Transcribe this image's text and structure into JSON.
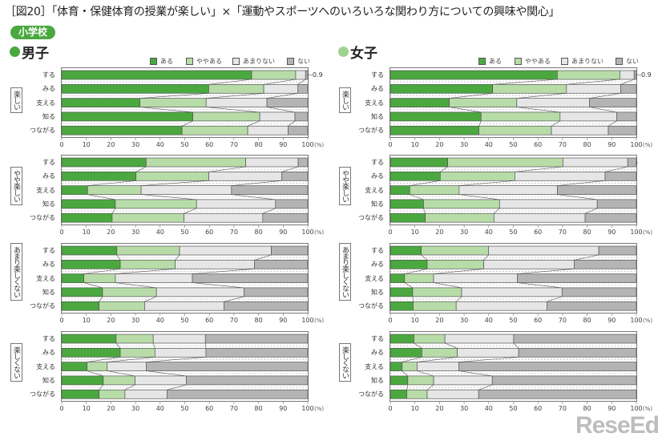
{
  "title": "［図20］「体育・保健体育の授業が楽しい」×「運動やスポーツへのいろいろな関わり方についての興味や関心」",
  "badge": "小学校",
  "logo": "ReseEd",
  "chart_data": {
    "type": "bar",
    "orientation": "horizontal",
    "stacked": "percent",
    "legend": [
      "ある",
      "ややある",
      "あまりない",
      "ない"
    ],
    "legend_placement": "top-right",
    "colors": [
      "#4aa83f",
      "#b7dca8",
      "#e6e6e6",
      "#b4b4b4"
    ],
    "categories": [
      "する",
      "みる",
      "支える",
      "知る",
      "つながる"
    ],
    "xlim": [
      0,
      100
    ],
    "xticks": [
      0,
      10,
      20,
      30,
      40,
      50,
      60,
      70,
      80,
      90,
      100
    ],
    "xunit": "(%)",
    "panels": [
      {
        "gender": "男子",
        "dot_color": "#4aa83f",
        "groups": [
          {
            "label": "楽しい",
            "values": [
              [
                77.2,
                17.9,
                4.0,
                0.9
              ],
              [
                59.8,
                22.4,
                13.9,
                4.0
              ],
              [
                31.8,
                26.9,
                24.7,
                16.6
              ],
              [
                53.3,
                27.2,
                14.3,
                5.2
              ],
              [
                48.9,
                26.7,
                16.4,
                8.0
              ]
            ]
          },
          {
            "label": "やや楽しい",
            "values": [
              [
                34.3,
                40.5,
                21.3,
                3.9
              ],
              [
                30.2,
                29.6,
                29.6,
                10.6
              ],
              [
                10.5,
                21.8,
                36.7,
                31.0
              ],
              [
                21.8,
                33.0,
                32.1,
                13.1
              ],
              [
                20.5,
                29.2,
                32.0,
                18.3
              ]
            ]
          },
          {
            "label": "あまり楽しくない",
            "values": [
              [
                22.4,
                25.5,
                37.3,
                14.8
              ],
              [
                23.8,
                22.3,
                32.3,
                21.6
              ],
              [
                9.0,
                12.8,
                31.3,
                46.9
              ],
              [
                16.6,
                21.9,
                35.6,
                25.9
              ],
              [
                15.2,
                18.5,
                32.3,
                34.0
              ]
            ]
          },
          {
            "label": "楽しくない",
            "values": [
              [
                22.1,
                15.1,
                21.2,
                41.6
              ],
              [
                23.8,
                14.1,
                20.7,
                41.4
              ],
              [
                10.3,
                8.2,
                15.9,
                65.6
              ],
              [
                16.9,
                12.9,
                20.9,
                49.3
              ],
              [
                15.2,
                10.5,
                17.1,
                57.2
              ]
            ]
          }
        ]
      },
      {
        "gender": "女子",
        "dot_color": "#9fd48f",
        "groups": [
          {
            "label": "楽しい",
            "values": [
              [
                67.8,
                25.4,
                5.8,
                0.9
              ],
              [
                41.6,
                30.0,
                22.1,
                6.3
              ],
              [
                24.0,
                27.4,
                29.6,
                19.0
              ],
              [
                36.9,
                32.1,
                23.0,
                8.0
              ],
              [
                36.0,
                29.5,
                23.1,
                11.4
              ]
            ]
          },
          {
            "label": "やや楽しい",
            "values": [
              [
                23.3,
                46.8,
                26.3,
                3.5
              ],
              [
                20.3,
                30.3,
                36.7,
                12.7
              ],
              [
                7.9,
                20.1,
                40.0,
                32.1
              ],
              [
                13.5,
                30.9,
                39.7,
                15.9
              ],
              [
                14.2,
                27.9,
                37.0,
                20.8
              ]
            ]
          },
          {
            "label": "あまり楽しくない",
            "values": [
              [
                12.6,
                27.3,
                44.8,
                15.3
              ],
              [
                15.0,
                23.0,
                36.7,
                25.3
              ],
              [
                5.8,
                11.8,
                34.0,
                48.4
              ],
              [
                9.1,
                19.9,
                40.8,
                30.2
              ],
              [
                9.3,
                17.5,
                36.9,
                36.4
              ]
            ]
          },
          {
            "label": "楽しくない",
            "values": [
              [
                9.6,
                12.6,
                27.9,
                49.9
              ],
              [
                12.8,
                14.4,
                24.9,
                47.8
              ],
              [
                4.8,
                6.1,
                17.0,
                72.1
              ],
              [
                7.1,
                10.5,
                23.8,
                58.5
              ],
              [
                6.7,
                8.3,
                20.9,
                64.1
              ]
            ]
          }
        ]
      }
    ]
  }
}
